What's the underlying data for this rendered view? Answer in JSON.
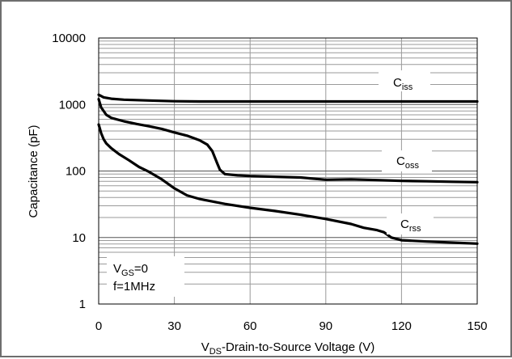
{
  "chart_data": {
    "type": "line",
    "x_label": {
      "main": "V",
      "sub": "DS",
      "rest": "-Drain-to-Source Voltage  (V)"
    },
    "y_label": "Capacitance (pF)",
    "xlim": [
      0,
      150
    ],
    "ylim": [
      1,
      10000
    ],
    "y_scale": "log",
    "x_ticks": [
      "0",
      "30",
      "60",
      "90",
      "120",
      "150"
    ],
    "y_ticks": [
      "10000",
      "1000",
      "100",
      "10",
      "1"
    ],
    "grid": true,
    "annotation": {
      "line1_main": "V",
      "line1_sub": "GS",
      "line1_rest": "=0",
      "line2": "f=1MHz"
    },
    "series": [
      {
        "name": "C",
        "name_sub": "iss",
        "x": [
          0,
          2,
          5,
          10,
          20,
          30,
          40,
          60,
          90,
          120,
          150
        ],
        "y": [
          1400,
          1280,
          1220,
          1180,
          1150,
          1120,
          1110,
          1110,
          1110,
          1110,
          1110
        ]
      },
      {
        "name": "C",
        "name_sub": "oss",
        "x": [
          0,
          1,
          3,
          5,
          10,
          15,
          20,
          25,
          30,
          35,
          40,
          43,
          45,
          47,
          48,
          50,
          55,
          60,
          70,
          80,
          90,
          100,
          110,
          120,
          130,
          140,
          150
        ],
        "y": [
          1200,
          900,
          700,
          630,
          560,
          510,
          470,
          430,
          380,
          340,
          290,
          250,
          200,
          130,
          105,
          90,
          86,
          84,
          82,
          80,
          74,
          75,
          73,
          71,
          70,
          69,
          68
        ]
      },
      {
        "name": "C",
        "name_sub": "rss",
        "x": [
          0,
          1,
          2,
          3,
          5,
          8,
          12,
          16,
          20,
          25,
          30,
          35,
          40,
          50,
          60,
          70,
          80,
          90,
          100,
          105,
          110,
          113,
          116,
          120,
          130,
          140,
          150
        ],
        "y": [
          500,
          370,
          300,
          260,
          220,
          180,
          145,
          115,
          97,
          75,
          55,
          43,
          38,
          32,
          28,
          25,
          22,
          19,
          16,
          14,
          13,
          12,
          10,
          9.1,
          8.7,
          8.4,
          8.1
        ]
      }
    ]
  }
}
